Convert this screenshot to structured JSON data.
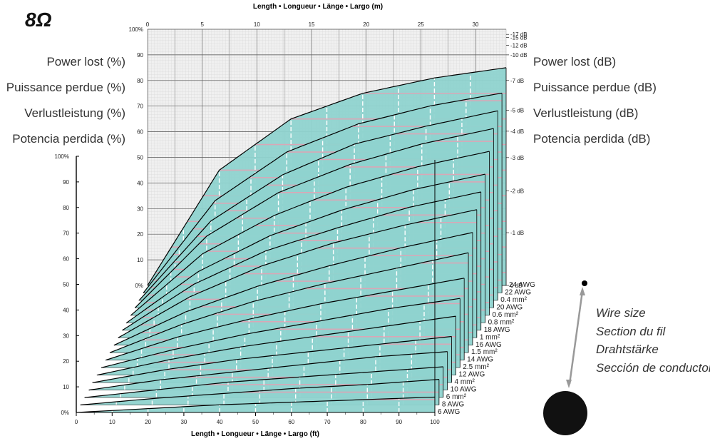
{
  "impedance_title": "8Ω",
  "left_labels": [
    "Power lost (%)",
    "Puissance perdue (%)",
    "Verlustleistung (%)",
    "Potencia perdida (%)"
  ],
  "right_labels": [
    "Power lost (dB)",
    "Puissance perdue (dB)",
    "Verlustleistung (dB)",
    "Potencia perdida (dB)"
  ],
  "wire_size_labels": [
    "Wire size",
    "Section du fil",
    "Drahtstärke",
    "Sección de conductor"
  ],
  "chart_data": {
    "type": "area",
    "title": "",
    "xlabel": "Length • Longueur • Länge • Largo (ft)",
    "x2label": "Length • Longueur • Länge • Largo (m)",
    "ylabel": "",
    "xlim": [
      0,
      100
    ],
    "x2lim": [
      0,
      30
    ],
    "ylim": [
      0,
      100
    ],
    "x_ticks": [
      "0",
      "10",
      "20",
      "30",
      "40",
      "50",
      "60",
      "70",
      "80",
      "90",
      "100"
    ],
    "x2_ticks": [
      "0",
      "5",
      "10",
      "15",
      "20",
      "25",
      "30"
    ],
    "y_ticks": [
      "0%",
      "10",
      "20",
      "30",
      "40",
      "50",
      "60",
      "70",
      "80",
      "90",
      "100%"
    ],
    "back_y_ticks": [
      "0%",
      "10",
      "20",
      "30",
      "40",
      "50",
      "60",
      "70",
      "80",
      "90",
      "100%"
    ],
    "db_ticks": [
      {
        "label": "0 dB",
        "pct": 0
      },
      {
        "label": "-1 dB",
        "pct": 20.6
      },
      {
        "label": "-2 dB",
        "pct": 36.9
      },
      {
        "label": "-3 dB",
        "pct": 49.9
      },
      {
        "label": "-4 dB",
        "pct": 60.2
      },
      {
        "label": "-5 dB",
        "pct": 68.4
      },
      {
        "label": "-7 dB",
        "pct": 80.0
      },
      {
        "label": "-10 dB",
        "pct": 90.0
      },
      {
        "label": "-12 dB",
        "pct": 93.7
      },
      {
        "label": "-15 dB",
        "pct": 96.8
      },
      {
        "label": "-17 dB",
        "pct": 98.0
      }
    ],
    "x": [
      0,
      20,
      40,
      60,
      80,
      100
    ],
    "series": [
      {
        "name": "24 AWG",
        "values": [
          0,
          45,
          65,
          75,
          81,
          85
        ]
      },
      {
        "name": "22 AWG",
        "values": [
          0,
          36,
          55,
          66,
          73,
          78
        ]
      },
      {
        "name": "0.4 mm²",
        "values": [
          0,
          31,
          49,
          61,
          68,
          74
        ]
      },
      {
        "name": "20 AWG",
        "values": [
          0,
          28,
          45,
          56,
          64,
          70
        ]
      },
      {
        "name": "0.6 mm²",
        "values": [
          0,
          24,
          39,
          50,
          58,
          64
        ]
      },
      {
        "name": "0.8 mm²",
        "values": [
          0,
          20,
          34,
          44,
          52,
          58
        ]
      },
      {
        "name": "18 AWG",
        "values": [
          0,
          18,
          31,
          40,
          48,
          54
        ]
      },
      {
        "name": "1 mm²",
        "values": [
          0,
          16,
          28,
          37,
          44,
          50
        ]
      },
      {
        "name": "16 AWG",
        "values": [
          0,
          13,
          23,
          31,
          38,
          44
        ]
      },
      {
        "name": "1.5 mm²",
        "values": [
          0,
          11,
          20,
          27,
          33,
          39
        ]
      },
      {
        "name": "14 AWG",
        "values": [
          0,
          9,
          16,
          22,
          27,
          32
        ]
      },
      {
        "name": "2.5 mm²",
        "values": [
          0,
          7,
          13,
          18,
          23,
          27
        ]
      },
      {
        "name": "12 AWG",
        "values": [
          0,
          6,
          11,
          15,
          19,
          23
        ]
      },
      {
        "name": "4 mm²",
        "values": [
          0,
          5,
          9,
          12,
          15,
          18
        ]
      },
      {
        "name": "10 AWG",
        "values": [
          0,
          4,
          7,
          10,
          13,
          15
        ]
      },
      {
        "name": "6 mm²",
        "values": [
          0,
          3,
          6,
          8,
          10,
          12
        ]
      },
      {
        "name": "8 AWG",
        "values": [
          0,
          2.5,
          4.5,
          6.5,
          8,
          10
        ]
      },
      {
        "name": "6 AWG",
        "values": [
          0,
          1.5,
          3,
          4,
          5,
          6
        ]
      }
    ],
    "grid": true,
    "colors": {
      "fill": "#8fd3cf",
      "stripe": "#d9a7b6",
      "edge": "#000000",
      "back_grid": "#ececec"
    }
  }
}
